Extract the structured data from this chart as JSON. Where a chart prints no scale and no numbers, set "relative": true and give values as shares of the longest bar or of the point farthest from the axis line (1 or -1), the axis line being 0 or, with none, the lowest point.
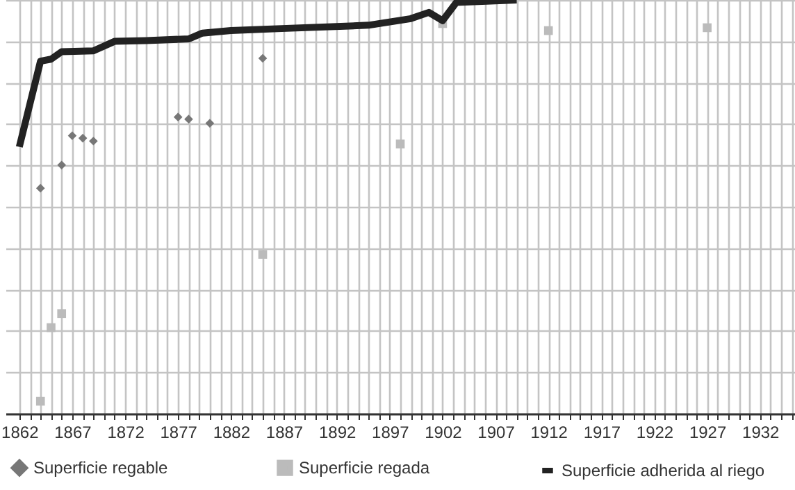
{
  "chart_data": {
    "type": "scatter",
    "relative": true,
    "grid": true,
    "legend": "bottom",
    "xlim": [
      1860.7,
      1935.3
    ],
    "xticks": [
      1862,
      {
        "value": 1863,
        "label": null
      },
      {
        "value": 1864,
        "label": null
      },
      {
        "value": 1865,
        "label": null
      },
      {
        "value": 1866,
        "label": null
      },
      1867,
      {
        "value": 1868,
        "label": null
      },
      {
        "value": 1869,
        "label": null
      },
      {
        "value": 1870,
        "label": null
      },
      {
        "value": 1871,
        "label": null
      },
      1872,
      {
        "value": 1873,
        "label": null
      },
      {
        "value": 1874,
        "label": null
      },
      {
        "value": 1875,
        "label": null
      },
      {
        "value": 1876,
        "label": null
      },
      1877,
      {
        "value": 1878,
        "label": null
      },
      {
        "value": 1879,
        "label": null
      },
      {
        "value": 1880,
        "label": null
      },
      {
        "value": 1881,
        "label": null
      },
      1882,
      {
        "value": 1883,
        "label": null
      },
      {
        "value": 1884,
        "label": null
      },
      {
        "value": 1885,
        "label": null
      },
      {
        "value": 1886,
        "label": null
      },
      1887,
      {
        "value": 1888,
        "label": null
      },
      {
        "value": 1889,
        "label": null
      },
      {
        "value": 1890,
        "label": null
      },
      {
        "value": 1891,
        "label": null
      },
      1892,
      {
        "value": 1893,
        "label": null
      },
      {
        "value": 1894,
        "label": null
      },
      {
        "value": 1895,
        "label": null
      },
      {
        "value": 1896,
        "label": null
      },
      1897,
      {
        "value": 1898,
        "label": null
      },
      {
        "value": 1899,
        "label": null
      },
      {
        "value": 1900,
        "label": null
      },
      {
        "value": 1901,
        "label": null
      },
      1902,
      {
        "value": 1903,
        "label": null
      },
      {
        "value": 1904,
        "label": null
      },
      {
        "value": 1905,
        "label": null
      },
      {
        "value": 1906,
        "label": null
      },
      1907,
      {
        "value": 1908,
        "label": null
      },
      {
        "value": 1909,
        "label": null
      },
      {
        "value": 1910,
        "label": null
      },
      {
        "value": 1911,
        "label": null
      },
      1912,
      {
        "value": 1913,
        "label": null
      },
      {
        "value": 1914,
        "label": null
      },
      {
        "value": 1915,
        "label": null
      },
      {
        "value": 1916,
        "label": null
      },
      1917,
      {
        "value": 1918,
        "label": null
      },
      {
        "value": 1919,
        "label": null
      },
      {
        "value": 1920,
        "label": null
      },
      {
        "value": 1921,
        "label": null
      },
      1922,
      {
        "value": 1923,
        "label": null
      },
      {
        "value": 1924,
        "label": null
      },
      {
        "value": 1925,
        "label": null
      },
      {
        "value": 1926,
        "label": null
      },
      1927,
      {
        "value": 1928,
        "label": null
      },
      {
        "value": 1929,
        "label": null
      },
      {
        "value": 1930,
        "label": null
      },
      {
        "value": 1931,
        "label": null
      },
      1932,
      {
        "value": 1933,
        "label": null
      },
      {
        "value": 1934,
        "label": null
      },
      {
        "value": 1935,
        "label": null
      }
    ],
    "series": [
      {
        "name": "Superficie regable",
        "marker": "diamond",
        "color": "#777777",
        "x": [
          1864,
          1866,
          1867,
          1868,
          1869,
          1877,
          1878,
          1880,
          1885
        ],
        "values": [
          0.545,
          0.601,
          0.672,
          0.666,
          0.659,
          0.717,
          0.712,
          0.702,
          0.859
        ]
      },
      {
        "name": "Superficie regada",
        "marker": "square",
        "color": "#bbbbbb",
        "x": [
          1864,
          1865,
          1866,
          1885,
          1898,
          1902,
          1912,
          1927
        ],
        "values": [
          0.03,
          0.208,
          0.242,
          0.385,
          0.652,
          0.943,
          0.926,
          0.933
        ]
      },
      {
        "name": "Superficie adherida al riego",
        "type": "line",
        "marker": "none",
        "color": "#222222",
        "x": [
          1862,
          1864,
          1865,
          1866,
          1869,
          1871,
          1874,
          1878,
          1879.3,
          1882,
          1886.8,
          1895,
          1899,
          1900.7,
          1902,
          1903.3,
          1909
        ],
        "values": [
          0.645,
          0.852,
          0.857,
          0.875,
          0.877,
          0.9,
          0.902,
          0.906,
          0.92,
          0.926,
          0.931,
          0.939,
          0.955,
          0.97,
          0.95,
          0.994,
          1.0
        ]
      }
    ]
  }
}
